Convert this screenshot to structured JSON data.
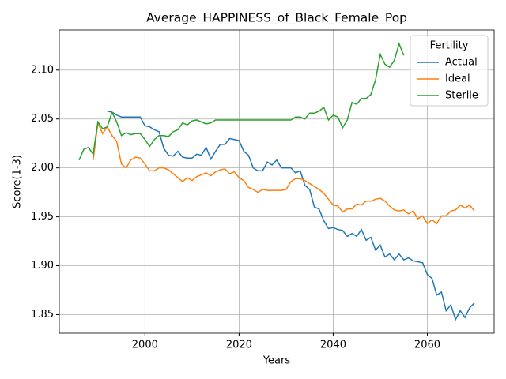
{
  "chart_data": {
    "type": "line",
    "title": "Average_HAPPINESS_of_Black_Female_Pop",
    "xlabel": "Years",
    "ylabel": "Score(1-3)",
    "x": [
      1986,
      1987,
      1988,
      1989,
      1990,
      1991,
      1992,
      1993,
      1994,
      1995,
      1996,
      1997,
      1998,
      1999,
      2000,
      2001,
      2002,
      2003,
      2004,
      2005,
      2006,
      2007,
      2008,
      2009,
      2010,
      2011,
      2012,
      2013,
      2014,
      2015,
      2016,
      2017,
      2018,
      2019,
      2020,
      2021,
      2022,
      2023,
      2024,
      2025,
      2026,
      2027,
      2028,
      2029,
      2030,
      2031,
      2032,
      2033,
      2034,
      2035,
      2036,
      2037,
      2038,
      2039,
      2040,
      2041,
      2042,
      2043,
      2044,
      2045,
      2046,
      2047,
      2048,
      2049,
      2050,
      2051,
      2052,
      2053,
      2054,
      2055,
      2056,
      2057,
      2058,
      2059,
      2060,
      2061,
      2062,
      2063,
      2064,
      2065,
      2066,
      2067,
      2068,
      2069,
      2070
    ],
    "series": [
      {
        "name": "Actual",
        "color": "#1f77b4",
        "values": [
          null,
          null,
          null,
          null,
          null,
          null,
          2.058,
          2.057,
          2.054,
          2.052,
          2.052,
          2.052,
          2.052,
          2.052,
          2.043,
          2.042,
          2.039,
          2.037,
          2.02,
          2.013,
          2.012,
          2.017,
          2.011,
          2.01,
          2.01,
          2.014,
          2.013,
          2.021,
          2.009,
          2.017,
          2.024,
          2.024,
          2.03,
          2.029,
          2.028,
          2.017,
          2.013,
          2.0,
          1.997,
          1.997,
          2.006,
          2.003,
          2.008,
          2.0,
          2.0,
          2.0,
          1.995,
          1.997,
          1.982,
          1.978,
          1.96,
          1.958,
          1.946,
          1.938,
          1.939,
          1.937,
          1.936,
          1.93,
          1.933,
          1.93,
          1.937,
          1.926,
          1.929,
          1.916,
          1.921,
          1.909,
          1.912,
          1.906,
          1.912,
          1.906,
          1.908,
          1.905,
          1.904,
          1.903,
          1.891,
          1.887,
          1.87,
          1.873,
          1.854,
          1.86,
          1.845,
          1.854,
          1.847,
          1.857,
          1.862
        ]
      },
      {
        "name": "Ideal",
        "color": "#ff7f0e",
        "values": [
          null,
          null,
          null,
          2.008,
          2.046,
          2.035,
          2.042,
          2.033,
          2.027,
          2.004,
          2.0,
          2.008,
          2.011,
          2.01,
          2.004,
          1.997,
          1.997,
          2.0,
          2.0,
          1.998,
          1.994,
          1.99,
          1.986,
          1.99,
          1.987,
          1.991,
          1.993,
          1.995,
          1.992,
          1.996,
          1.998,
          1.999,
          1.994,
          1.996,
          1.99,
          1.987,
          1.98,
          1.978,
          1.975,
          1.978,
          1.977,
          1.977,
          1.977,
          1.977,
          1.978,
          1.986,
          1.989,
          1.989,
          1.987,
          1.984,
          1.981,
          1.978,
          1.974,
          1.968,
          1.962,
          1.961,
          1.955,
          1.958,
          1.958,
          1.963,
          1.962,
          1.966,
          1.966,
          1.968,
          1.969,
          1.966,
          1.961,
          1.957,
          1.956,
          1.957,
          1.953,
          1.956,
          1.948,
          1.951,
          1.943,
          1.947,
          1.943,
          1.951,
          1.951,
          1.956,
          1.957,
          1.962,
          1.959,
          1.962,
          1.956
        ]
      },
      {
        "name": "Sterile",
        "color": "#2ca02c",
        "values": [
          2.008,
          2.019,
          2.021,
          2.014,
          2.047,
          2.04,
          2.042,
          2.057,
          2.047,
          2.033,
          2.036,
          2.034,
          2.035,
          2.035,
          2.029,
          2.022,
          2.029,
          2.033,
          2.033,
          2.032,
          2.037,
          2.039,
          2.046,
          2.044,
          2.048,
          2.049,
          2.047,
          2.045,
          2.046,
          2.049,
          2.049,
          2.049,
          2.049,
          2.049,
          2.049,
          2.049,
          2.049,
          2.049,
          2.049,
          2.049,
          2.049,
          2.049,
          2.049,
          2.049,
          2.049,
          2.049,
          2.052,
          2.052,
          2.05,
          2.056,
          2.056,
          2.058,
          2.062,
          2.049,
          2.054,
          2.052,
          2.041,
          2.049,
          2.067,
          2.065,
          2.071,
          2.071,
          2.075,
          2.09,
          2.116,
          2.106,
          2.103,
          2.11,
          2.127,
          2.115,
          null,
          null,
          null,
          null,
          null,
          null,
          null,
          null,
          null,
          null,
          null,
          null,
          null,
          null,
          null
        ]
      }
    ],
    "xlim": [
      1981.8,
      2074.2
    ],
    "xticks": [
      2000,
      2020,
      2040,
      2060
    ],
    "ylim": [
      1.831,
      2.141
    ],
    "yticks": [
      1.85,
      {
        "value": 1.9,
        "label": "1.90"
      },
      1.95,
      {
        "value": 2.0,
        "label": "2.00"
      },
      2.05,
      {
        "value": 2.1,
        "label": "2.10"
      }
    ],
    "grid": true,
    "legend_title": "Fertility",
    "legend": "upper right"
  }
}
